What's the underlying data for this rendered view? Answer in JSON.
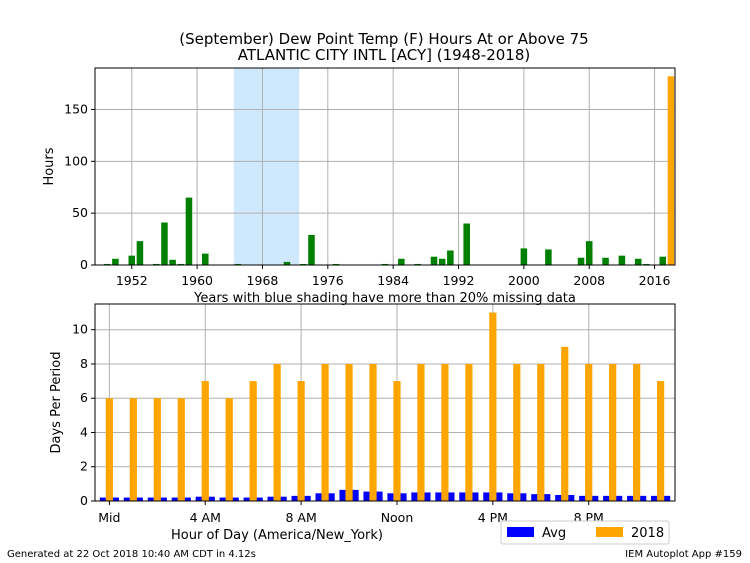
{
  "title_line1": "(September) Dew Point Temp (F) Hours At or Above 75",
  "title_line2": "ATLANTIC CITY INTL [ACY] (1948-2018)",
  "footer_left": "Generated at 22 Oct 2018 10:40 AM CDT in 4.12s",
  "footer_right": "IEM Autoplot App #159",
  "colors": {
    "yearly": "#008000",
    "highlight": "#ffa500",
    "avg": "#0000ff",
    "y2018": "#ffa500",
    "missing_shade": "#cfe8fb"
  },
  "chart_data": [
    {
      "type": "bar",
      "ylabel": "Hours",
      "xlabel": "Years with blue shading have more than 20% missing data",
      "xlim": [
        1947.5,
        2018.5
      ],
      "ylim": [
        0,
        190
      ],
      "xticks": [
        1952,
        1960,
        1968,
        1976,
        1984,
        1992,
        2000,
        2008,
        2016
      ],
      "xtick_labels": [
        "1952",
        "1960",
        "1968",
        "1976",
        "1984",
        "1992",
        "2000",
        "2008",
        "2016"
      ],
      "yticks": [
        0,
        50,
        100,
        150
      ],
      "ytick_labels": [
        "0",
        "50",
        "100",
        "150"
      ],
      "shaded_years": [
        1964.5,
        1972.5
      ],
      "grid": true,
      "highlight_year": 2018,
      "years": [
        1948,
        1949,
        1950,
        1951,
        1952,
        1953,
        1954,
        1955,
        1956,
        1957,
        1958,
        1959,
        1960,
        1961,
        1962,
        1963,
        1964,
        1965,
        1966,
        1967,
        1968,
        1969,
        1970,
        1971,
        1972,
        1973,
        1974,
        1975,
        1976,
        1977,
        1978,
        1979,
        1980,
        1981,
        1982,
        1983,
        1984,
        1985,
        1986,
        1987,
        1988,
        1989,
        1990,
        1991,
        1992,
        1993,
        1994,
        1995,
        1996,
        1997,
        1998,
        1999,
        2000,
        2001,
        2002,
        2003,
        2004,
        2005,
        2006,
        2007,
        2008,
        2009,
        2010,
        2011,
        2012,
        2013,
        2014,
        2015,
        2016,
        2017,
        2018
      ],
      "values": [
        0,
        1,
        6,
        0,
        9,
        23,
        0,
        1,
        41,
        5,
        1,
        65,
        0,
        11,
        0,
        0,
        0,
        1,
        0,
        0,
        0,
        0,
        0,
        3,
        0,
        1,
        29,
        0,
        0,
        1,
        0,
        0,
        0,
        0,
        0,
        1,
        0,
        6,
        0,
        1,
        0,
        8,
        6,
        14,
        0,
        40,
        0,
        0,
        0,
        0,
        0,
        0,
        16,
        0,
        0,
        15,
        0,
        0,
        0,
        7,
        23,
        0,
        7,
        0,
        9,
        0,
        6,
        1,
        0,
        8,
        182
      ]
    },
    {
      "type": "bar",
      "ylabel": "Days Per Period",
      "xlabel": "Hour of Day (America/New_York)",
      "xlim": [
        -0.6,
        23.6
      ],
      "ylim": [
        0,
        11.5
      ],
      "xticks": [
        0,
        4,
        8,
        12,
        16,
        20
      ],
      "xtick_labels": [
        "Mid",
        "4 AM",
        "8 AM",
        "Noon",
        "4 PM",
        "8 PM"
      ],
      "yticks": [
        0,
        2,
        4,
        6,
        8,
        10
      ],
      "ytick_labels": [
        "0",
        "2",
        "4",
        "6",
        "8",
        "10"
      ],
      "grid": true,
      "legend": "bottom-right",
      "hours": [
        0,
        1,
        2,
        3,
        4,
        5,
        6,
        7,
        8,
        9,
        10,
        11,
        12,
        13,
        14,
        15,
        16,
        17,
        18,
        19,
        20,
        21,
        22,
        23
      ],
      "series": [
        {
          "name": "2018",
          "values": [
            6,
            6,
            6,
            6,
            7,
            6,
            7,
            8,
            7,
            8,
            8,
            8,
            7,
            8,
            8,
            8,
            11,
            8,
            8,
            9,
            8,
            8,
            8,
            7
          ]
        },
        {
          "name": "Avg",
          "values": [
            0.2,
            0.2,
            0.2,
            0.2,
            0.25,
            0.2,
            0.2,
            0.25,
            0.3,
            0.45,
            0.65,
            0.55,
            0.45,
            0.5,
            0.5,
            0.5,
            0.5,
            0.45,
            0.4,
            0.35,
            0.3,
            0.3,
            0.3,
            0.3
          ]
        }
      ]
    }
  ]
}
